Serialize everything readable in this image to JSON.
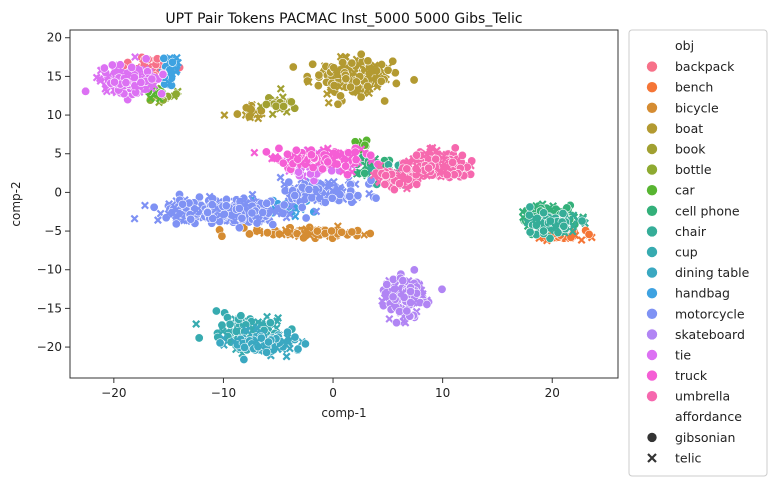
{
  "chart_data": {
    "type": "scatter",
    "title": "UPT Pair Tokens PACMAC Inst_5000 5000 Gibs_Telic",
    "xlabel": "comp-1",
    "ylabel": "comp-2",
    "xlim": [
      -24,
      26
    ],
    "ylim": [
      -24,
      21
    ],
    "xticks": [
      -20,
      -10,
      0,
      10,
      20
    ],
    "yticks": [
      -20,
      -15,
      -10,
      -5,
      0,
      5,
      10,
      15,
      20
    ],
    "grid": false,
    "legend": {
      "placement": "outside-right",
      "hue_title": "obj",
      "style_title": "affordance",
      "style_entries": [
        {
          "name": "gibsonian",
          "marker": "circle"
        },
        {
          "name": "telic",
          "marker": "x"
        }
      ]
    },
    "series": [
      {
        "name": "backpack",
        "color": "#f77189",
        "clusters": [
          {
            "center": [
              -17,
              16
            ],
            "spread": [
              2.0,
              1.2
            ],
            "count": 60
          }
        ]
      },
      {
        "name": "bench",
        "color": "#f57536",
        "clusters": [
          {
            "center": [
              20.5,
              -5.5
            ],
            "spread": [
              1.8,
              0.5
            ],
            "count": 80
          }
        ]
      },
      {
        "name": "bicycle",
        "color": "#d58c32",
        "clusters": [
          {
            "center": [
              -2,
              -5.2
            ],
            "spread": [
              4.0,
              0.5
            ],
            "count": 80
          }
        ]
      },
      {
        "name": "boat",
        "color": "#b39a31",
        "clusters": [
          {
            "center": [
              1.5,
              15
            ],
            "spread": [
              3.0,
              2.0
            ],
            "count": 180
          },
          {
            "center": [
              -7.5,
              10.5
            ],
            "spread": [
              1.0,
              1.0
            ],
            "count": 20
          }
        ]
      },
      {
        "name": "book",
        "color": "#a1a031",
        "clusters": [
          {
            "center": [
              -5,
              11.5
            ],
            "spread": [
              1.5,
              1.0
            ],
            "count": 30
          }
        ]
      },
      {
        "name": "bottle",
        "color": "#8eaa31",
        "clusters": [
          {
            "center": [
              -16,
              12.5
            ],
            "spread": [
              1.2,
              0.8
            ],
            "count": 20
          }
        ]
      },
      {
        "name": "car",
        "color": "#58b531",
        "clusters": [
          {
            "center": [
              -16.5,
              13
            ],
            "spread": [
              1.0,
              0.7
            ],
            "count": 12
          },
          {
            "center": [
              2.5,
              6
            ],
            "spread": [
              0.8,
              0.8
            ],
            "count": 8
          }
        ]
      },
      {
        "name": "cell phone",
        "color": "#33b07a",
        "clusters": [
          {
            "center": [
              19.5,
              -3
            ],
            "spread": [
              2.0,
              1.2
            ],
            "count": 140
          },
          {
            "center": [
              3.5,
              3.5
            ],
            "spread": [
              1.5,
              1.2
            ],
            "count": 40
          }
        ]
      },
      {
        "name": "chair",
        "color": "#35ad98",
        "clusters": [
          {
            "center": [
              20,
              -4
            ],
            "spread": [
              2.2,
              1.0
            ],
            "count": 90
          },
          {
            "center": [
              5,
              2
            ],
            "spread": [
              1.5,
              1.0
            ],
            "count": 30
          }
        ]
      },
      {
        "name": "cup",
        "color": "#37abb0",
        "clusters": [
          {
            "center": [
              -7.5,
              -18
            ],
            "spread": [
              2.5,
              1.8
            ],
            "count": 110
          }
        ]
      },
      {
        "name": "dining table",
        "color": "#3aa8c1",
        "clusters": [
          {
            "center": [
              -6,
              -19.5
            ],
            "spread": [
              2.8,
              1.2
            ],
            "count": 110
          }
        ]
      },
      {
        "name": "handbag",
        "color": "#3ea2e1",
        "clusters": [
          {
            "center": [
              -14.8,
              16
            ],
            "spread": [
              0.5,
              1.4
            ],
            "count": 40
          },
          {
            "center": [
              -5,
              -2
            ],
            "spread": [
              3.0,
              1.2
            ],
            "count": 40
          }
        ]
      },
      {
        "name": "motorcycle",
        "color": "#7f92f4",
        "clusters": [
          {
            "center": [
              -10,
              -2.5
            ],
            "spread": [
              4.5,
              1.3
            ],
            "count": 320
          },
          {
            "center": [
              -1,
              0
            ],
            "spread": [
              3.0,
              1.5
            ],
            "count": 140
          }
        ]
      },
      {
        "name": "skateboard",
        "color": "#b185f4",
        "clusters": [
          {
            "center": [
              6.5,
              -13.5
            ],
            "spread": [
              1.5,
              2.0
            ],
            "count": 160
          }
        ]
      },
      {
        "name": "tie",
        "color": "#dc71f3",
        "clusters": [
          {
            "center": [
              -18.5,
              14.5
            ],
            "spread": [
              2.0,
              1.4
            ],
            "count": 200
          },
          {
            "center": [
              -2,
              3.5
            ],
            "spread": [
              3.0,
              1.5
            ],
            "count": 60
          }
        ]
      },
      {
        "name": "truck",
        "color": "#f55ed5",
        "clusters": [
          {
            "center": [
              -1,
              4.5
            ],
            "spread": [
              3.5,
              1.2
            ],
            "count": 120
          }
        ]
      },
      {
        "name": "umbrella",
        "color": "#f668ae",
        "clusters": [
          {
            "center": [
              9.5,
              3.5
            ],
            "spread": [
              2.2,
              1.4
            ],
            "count": 240
          },
          {
            "center": [
              6,
              2
            ],
            "spread": [
              2.0,
              1.0
            ],
            "count": 90
          }
        ]
      }
    ]
  }
}
